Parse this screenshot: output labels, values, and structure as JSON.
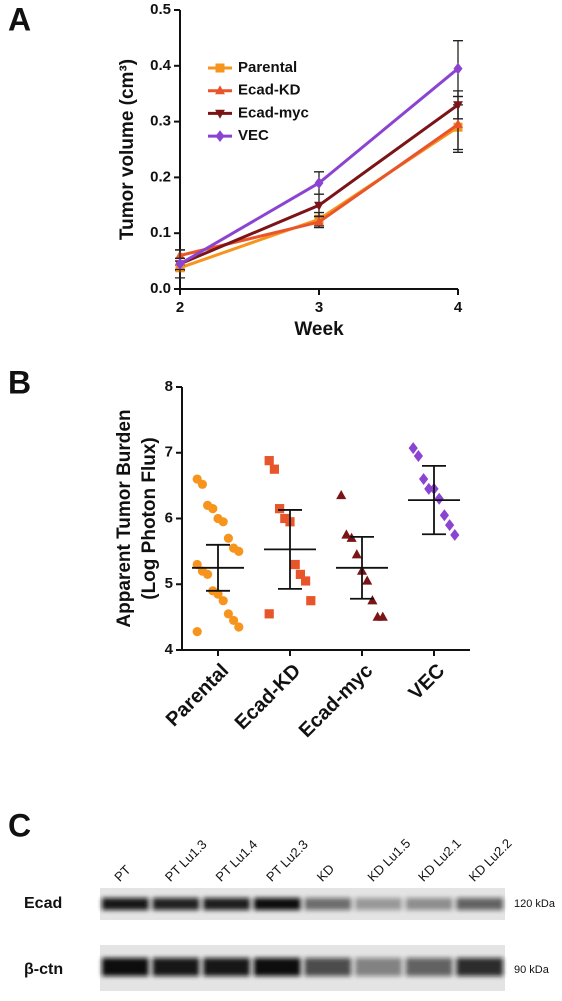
{
  "chart_data": [
    {
      "type": "line",
      "panel": "A",
      "ylabel": "Tumor volume (cm³)",
      "xlabel": "Week",
      "x": [
        2,
        3,
        4
      ],
      "xlim": [
        2,
        4
      ],
      "xticks": [
        2,
        3,
        4
      ],
      "ylim": [
        0,
        0.5
      ],
      "yticks": [
        {
          "value": 0,
          "label": "0.0"
        },
        0.1,
        0.2,
        0.3,
        0.4,
        0.5
      ],
      "series": [
        {
          "name": "Parental",
          "color": "#f7941d",
          "marker": "square",
          "values": [
            0.038,
            0.125,
            0.29
          ],
          "errors": [
            0.005,
            0.012,
            0.04
          ]
        },
        {
          "name": "Ecad-KD",
          "color": "#e8552b",
          "marker": "triangle-up",
          "values": [
            0.06,
            0.12,
            0.295
          ],
          "errors": [
            0.01,
            0.01,
            0.05
          ]
        },
        {
          "name": "Ecad-myc",
          "color": "#7b1416",
          "marker": "triangle-down",
          "values": [
            0.045,
            0.15,
            0.33
          ],
          "errors": [
            0.01,
            0.02,
            0.025
          ]
        },
        {
          "name": "VEC",
          "color": "#8b44d1",
          "marker": "diamond",
          "values": [
            0.045,
            0.19,
            0.395
          ],
          "errors": [
            0.025,
            0.02,
            0.05
          ]
        }
      ]
    },
    {
      "type": "strip",
      "panel": "B",
      "ylabel": [
        "Apparent Tumor Burden",
        "(Log Photon Flux)"
      ],
      "categories": [
        "Parental",
        "Ecad-KD",
        "Ecad-myc",
        "VEC"
      ],
      "colors": [
        "#f7941d",
        "#e8552b",
        "#7b1416",
        "#8b44d1"
      ],
      "markers": [
        "circle",
        "square",
        "triangle-up",
        "diamond"
      ],
      "ylim": [
        4,
        8
      ],
      "yticks": [
        4,
        5,
        6,
        7,
        8
      ],
      "values": [
        [
          6.6,
          6.52,
          6.2,
          6.15,
          6.0,
          5.95,
          5.7,
          5.55,
          5.5,
          5.3,
          5.2,
          5.15,
          4.9,
          4.85,
          4.75,
          4.55,
          4.45,
          4.35,
          4.28
        ],
        [
          6.88,
          6.75,
          6.15,
          6.0,
          5.95,
          5.3,
          5.15,
          5.05,
          4.75,
          4.55
        ],
        [
          6.35,
          5.75,
          5.7,
          5.45,
          5.2,
          5.05,
          4.75,
          4.5,
          4.5
        ],
        [
          7.07,
          6.95,
          6.6,
          6.45,
          6.45,
          6.3,
          6.05,
          5.9,
          5.75
        ]
      ],
      "means": [
        5.25,
        5.53,
        5.25,
        6.28
      ],
      "errors": [
        0.35,
        0.6,
        0.47,
        0.52
      ]
    }
  ],
  "blot": {
    "panel": "C",
    "lanes": [
      "PT",
      "PT Lu1.3",
      "PT Lu1.4",
      "PT Lu2.3",
      "KD",
      "KD Lu1.5",
      "KD Lu2.1",
      "KD Lu2.2"
    ],
    "rows": [
      {
        "label": "Ecad",
        "size": "120 kDa"
      },
      {
        "label": "β-ctn",
        "size": "90 kDa"
      }
    ]
  }
}
